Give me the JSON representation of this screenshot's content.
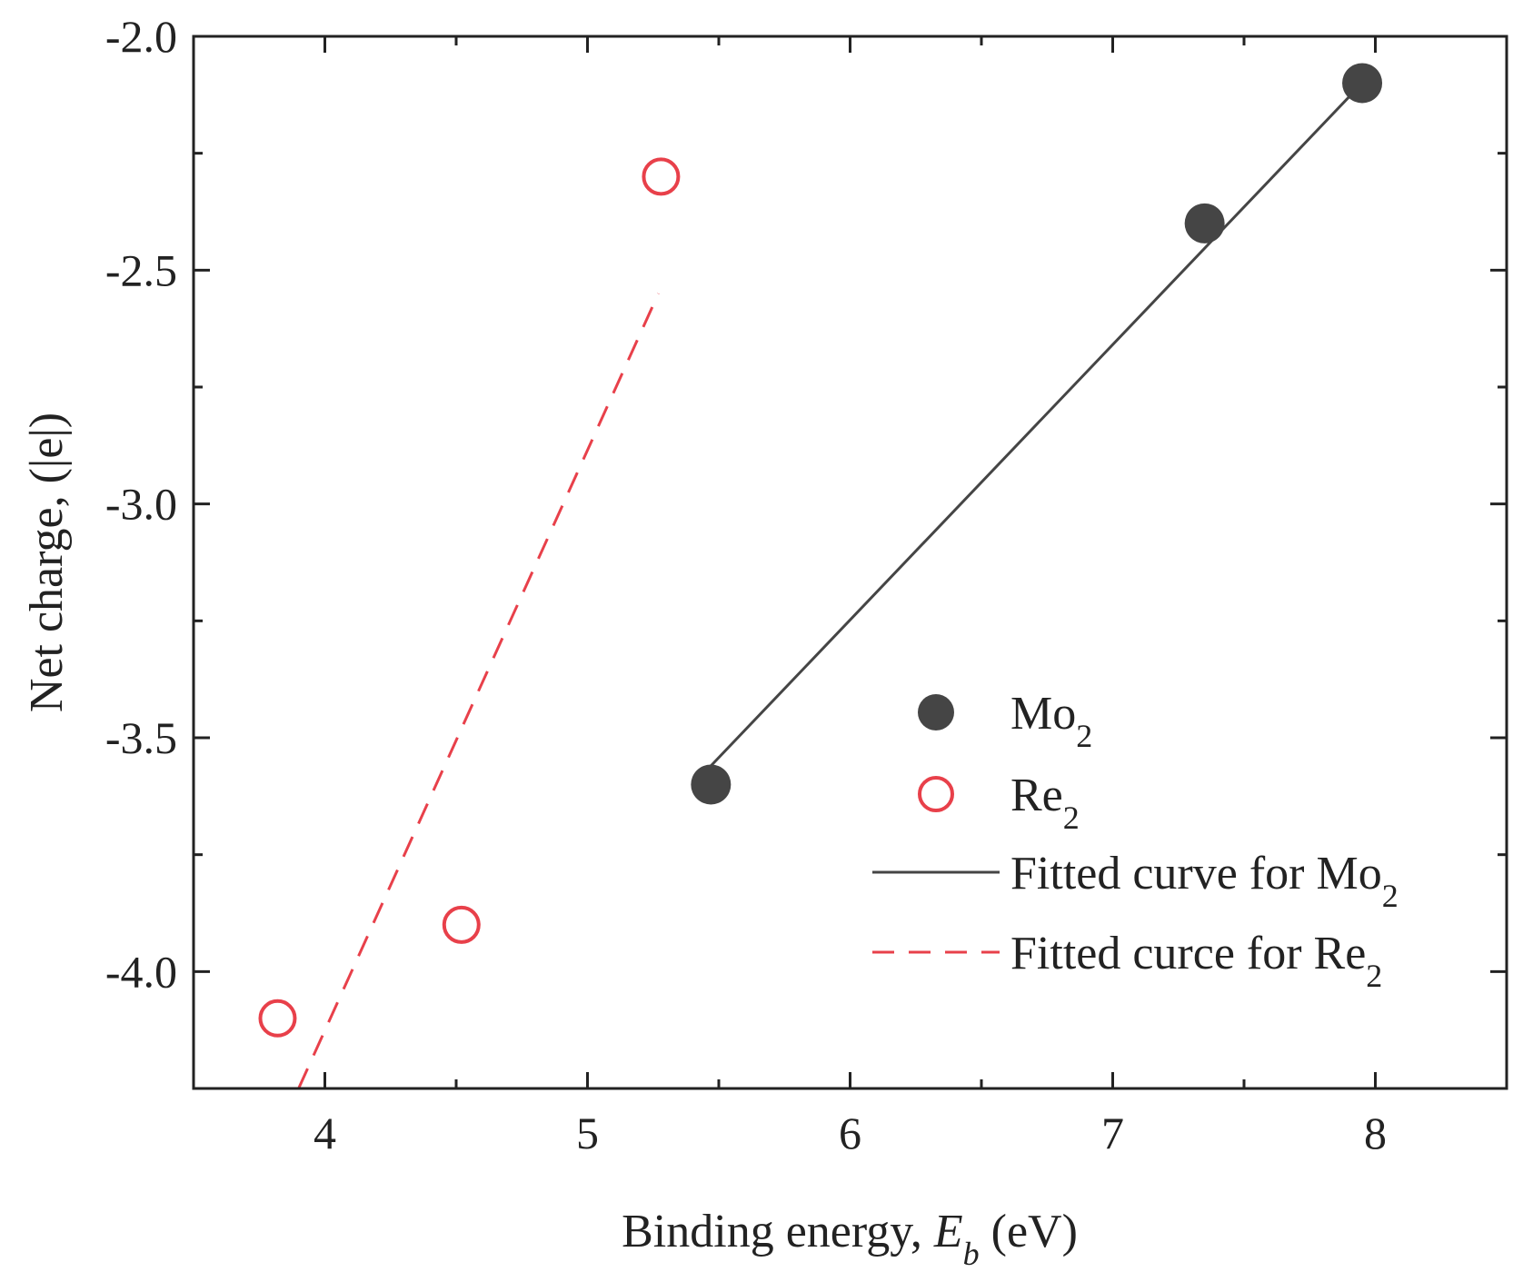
{
  "chart_data": {
    "type": "scatter",
    "xlabel_prefix": "Binding energy, ",
    "xlabel_var": "E",
    "xlabel_sub": "b",
    "xlabel_suffix": " (eV)",
    "ylabel": "Net charge, (|e|)",
    "xlim": [
      3.5,
      8.5
    ],
    "ylim": [
      -4.25,
      -2.0
    ],
    "xticks": [
      4,
      5,
      6,
      7,
      8
    ],
    "xtick_labels": [
      "4",
      "5",
      "6",
      "7",
      "8"
    ],
    "yticks": [
      -2.0,
      -2.5,
      -3.0,
      -3.5,
      -4.0
    ],
    "ytick_labels": [
      "-2.0",
      "-2.5",
      "-3.0",
      "-3.5",
      "-4.0"
    ],
    "series": [
      {
        "name": "Mo2",
        "label_base": "Mo",
        "label_sub": "2",
        "marker": "filled-circle",
        "color": "#454545",
        "x": [
          5.47,
          7.35,
          7.95
        ],
        "y": [
          -3.6,
          -2.4,
          -2.1
        ]
      },
      {
        "name": "Re2",
        "label_base": "Re",
        "label_sub": "2",
        "marker": "open-circle",
        "color": "#e8404a",
        "x": [
          3.82,
          4.52,
          5.28
        ],
        "y": [
          -4.1,
          -3.9,
          -2.3
        ]
      }
    ],
    "fits": [
      {
        "name": "Fitted curve for Mo2",
        "label_base": "Fitted curve for Mo",
        "label_sub": "2",
        "style": "solid",
        "color": "#454545",
        "x": [
          5.47,
          7.95
        ],
        "y": [
          -3.56,
          -2.1
        ]
      },
      {
        "name": "Fitted curce for Re2",
        "label_base": "Fitted curce for Re",
        "label_sub": "2",
        "style": "dashed",
        "color": "#e8404a",
        "x": [
          3.9,
          5.27
        ],
        "y": [
          -4.25,
          -2.55
        ]
      }
    ],
    "legend_position": "center-right"
  }
}
